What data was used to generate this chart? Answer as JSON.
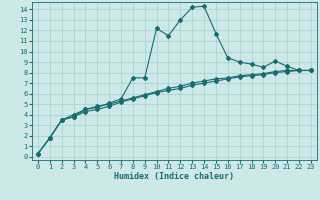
{
  "xlabel": "Humidex (Indice chaleur)",
  "bg_color": "#cce8e8",
  "grid_color": "#aad4d4",
  "line_color": "#1a6b6b",
  "xlim": [
    -0.5,
    23.5
  ],
  "ylim": [
    -0.3,
    14.7
  ],
  "xticks": [
    0,
    1,
    2,
    3,
    4,
    5,
    6,
    7,
    8,
    9,
    10,
    11,
    12,
    13,
    14,
    15,
    16,
    17,
    18,
    19,
    20,
    21,
    22,
    23
  ],
  "yticks": [
    0,
    1,
    2,
    3,
    4,
    5,
    6,
    7,
    8,
    9,
    10,
    11,
    12,
    13,
    14
  ],
  "line1_x": [
    0,
    1,
    2,
    3,
    4,
    5,
    6,
    7,
    8,
    9,
    10,
    11,
    12,
    13,
    14,
    15,
    16,
    17,
    18,
    19,
    20,
    21,
    22,
    23
  ],
  "line1_y": [
    0.3,
    1.8,
    3.5,
    3.8,
    4.5,
    4.7,
    5.1,
    5.5,
    7.5,
    7.5,
    12.2,
    11.5,
    13.0,
    14.2,
    14.3,
    11.7,
    9.4,
    9.0,
    8.8,
    8.5,
    9.1,
    8.6,
    8.2,
    8.2
  ],
  "line2_x": [
    0,
    1,
    2,
    3,
    4,
    5,
    6,
    7,
    8,
    9,
    10,
    11,
    12,
    13,
    14,
    15,
    16,
    17,
    18,
    19,
    20,
    21,
    22,
    23
  ],
  "line2_y": [
    0.3,
    1.8,
    3.5,
    3.8,
    4.3,
    4.5,
    4.8,
    5.2,
    5.5,
    5.8,
    6.1,
    6.3,
    6.5,
    6.8,
    7.0,
    7.2,
    7.4,
    7.6,
    7.7,
    7.8,
    8.0,
    8.1,
    8.2,
    8.2
  ],
  "line3_x": [
    0,
    1,
    2,
    3,
    4,
    5,
    6,
    7,
    8,
    9,
    10,
    11,
    12,
    13,
    14,
    15,
    16,
    17,
    18,
    19,
    20,
    21,
    22,
    23
  ],
  "line3_y": [
    0.3,
    1.8,
    3.5,
    4.0,
    4.5,
    4.8,
    5.0,
    5.3,
    5.6,
    5.9,
    6.2,
    6.5,
    6.7,
    7.0,
    7.2,
    7.4,
    7.5,
    7.7,
    7.8,
    7.9,
    8.1,
    8.2,
    8.2,
    8.2
  ],
  "tick_fontsize": 5,
  "xlabel_fontsize": 6,
  "marker_size": 2.0,
  "linewidth": 0.8
}
